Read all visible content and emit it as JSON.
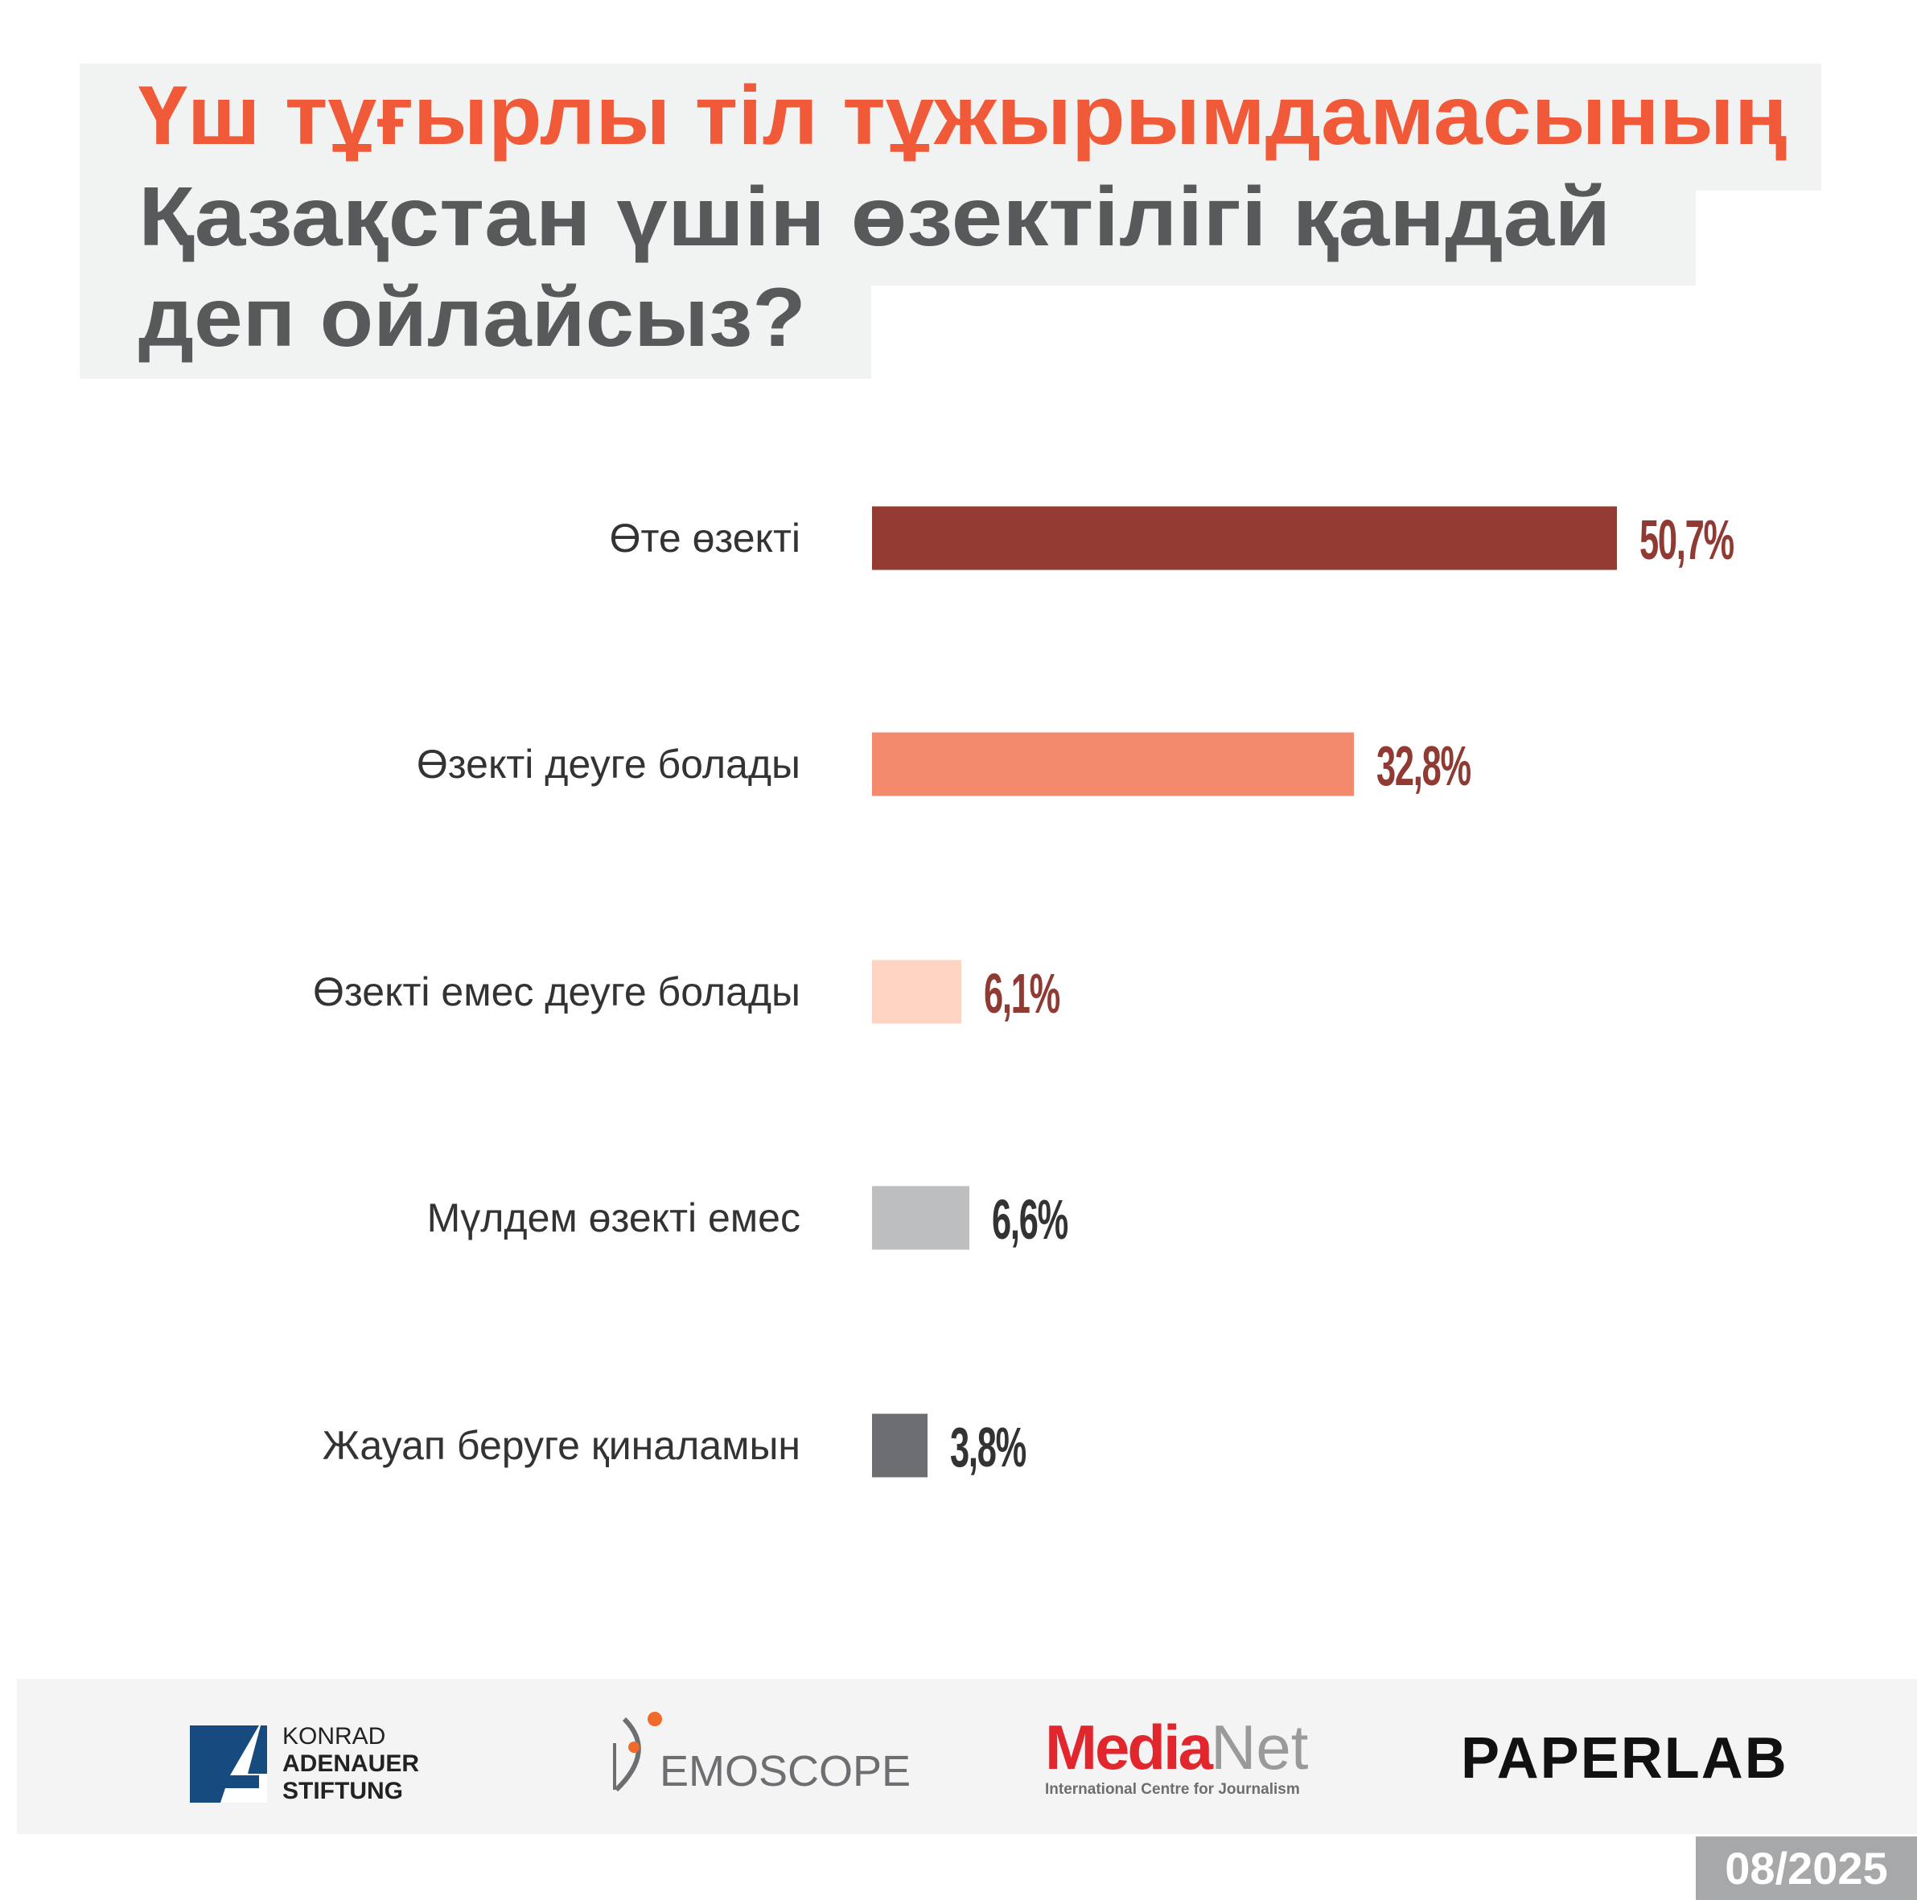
{
  "title": {
    "line1": "Үш тұғырлы тіл тұжырымдамасының",
    "line2": "Қазақстан үшін өзектілігі қандай",
    "line3": "деп ойлайсыз?"
  },
  "chart_data": {
    "type": "bar",
    "orientation": "horizontal",
    "title": "Үш тұғырлы тіл тұжырымдамасының Қазақстан үшін өзектілігі қандай деп ойлайсыз?",
    "categories": [
      "Өте өзекті",
      "Өзекті деуге болады",
      "Өзекті емес деуге болады",
      "Мүлдем өзекті емес",
      "Жауап беруге қиналамын"
    ],
    "values": [
      50.7,
      32.8,
      6.1,
      6.6,
      3.8
    ],
    "value_labels": [
      "50,7%",
      "32,8%",
      "6,1%",
      "6,6%",
      "3,8%"
    ],
    "unit": "%",
    "colors": [
      "#943b33",
      "#f48a6c",
      "#fdd3c1",
      "#bdbec0",
      "#6d6e71"
    ],
    "label_colors": [
      "#8f3a32",
      "#8f3a32",
      "#8f3a32",
      "#333333",
      "#333333"
    ],
    "xlim": [
      0,
      55
    ],
    "grid": false
  },
  "footer": {
    "logos": {
      "kas": [
        "KONRAD",
        "ADENAUER",
        "STIFTUNG"
      ],
      "demoscope": "EMOSCOPE",
      "medianet_red": "Media",
      "medianet_gray": "Net",
      "medianet_sub": "International Centre for Journalism",
      "paperlab": "PAPERLAB"
    },
    "date": "08/2025"
  }
}
